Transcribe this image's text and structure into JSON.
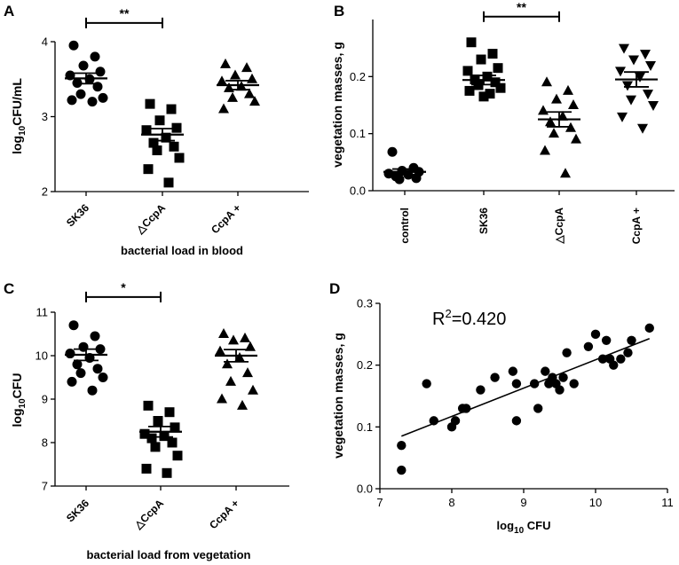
{
  "chart_data": [
    {
      "panel": "A",
      "type": "scatter",
      "ylabel_base": "log",
      "ylabel_sub": "10",
      "ylabel_rest": "CFU/mL",
      "xlabel": "bacterial load in blood",
      "categories": [
        "SK36",
        "△CcpA",
        "CcpA +"
      ],
      "ylim": [
        2,
        4
      ],
      "yticks": [
        "2",
        "3",
        "4"
      ],
      "marker": [
        "circle",
        "square",
        "triangle-up"
      ],
      "groups": [
        {
          "name": "SK36",
          "values": [
            3.95,
            3.8,
            3.68,
            3.6,
            3.55,
            3.5,
            3.45,
            3.4,
            3.3,
            3.25,
            3.22,
            3.2
          ],
          "mean": 3.51,
          "sem": 0.07
        },
        {
          "name": "△CcpA",
          "values": [
            3.17,
            3.1,
            2.95,
            2.85,
            2.82,
            2.72,
            2.65,
            2.6,
            2.55,
            2.45,
            2.3,
            2.12
          ],
          "mean": 2.76,
          "sem": 0.08
        },
        {
          "name": "CcpA +",
          "values": [
            3.7,
            3.65,
            3.55,
            3.5,
            3.47,
            3.4,
            3.38,
            3.3,
            3.25,
            3.2,
            3.1
          ],
          "mean": 3.42,
          "sem": 0.06
        }
      ],
      "significance": {
        "from": 0,
        "to": 1,
        "y": 4.25,
        "label": "**"
      }
    },
    {
      "panel": "B",
      "type": "scatter",
      "ylabel": "vegetation masses, g",
      "categories": [
        "control",
        "SK36",
        "△CcpA",
        "CcpA +"
      ],
      "ylim": [
        0,
        0.3
      ],
      "yticks": [
        "0.0",
        "0.1",
        "0.2"
      ],
      "marker": [
        "circle",
        "square",
        "triangle-up",
        "triangle-down"
      ],
      "groups": [
        {
          "name": "control",
          "values": [
            0.068,
            0.04,
            0.035,
            0.033,
            0.03,
            0.028,
            0.025,
            0.022,
            0.02
          ],
          "mean": 0.033,
          "sem": 0.005
        },
        {
          "name": "SK36",
          "values": [
            0.26,
            0.24,
            0.23,
            0.215,
            0.21,
            0.2,
            0.195,
            0.19,
            0.185,
            0.18,
            0.175,
            0.17,
            0.165
          ],
          "mean": 0.194,
          "sem": 0.008
        },
        {
          "name": "△CcpA",
          "values": [
            0.19,
            0.175,
            0.16,
            0.15,
            0.14,
            0.13,
            0.12,
            0.11,
            0.1,
            0.09,
            0.07,
            0.03
          ],
          "mean": 0.125,
          "sem": 0.013
        },
        {
          "name": "CcpA +",
          "values": [
            0.25,
            0.24,
            0.23,
            0.22,
            0.21,
            0.2,
            0.185,
            0.17,
            0.16,
            0.15,
            0.13,
            0.11
          ],
          "mean": 0.195,
          "sem": 0.013
        }
      ],
      "significance": {
        "from": 1,
        "to": 2,
        "y": 0.305,
        "label": "**"
      }
    },
    {
      "panel": "C",
      "type": "scatter",
      "ylabel_base": "log",
      "ylabel_sub": "10",
      "ylabel_rest": "CFU",
      "xlabel": "bacterial load from vegetation",
      "categories": [
        "SK36",
        "△CcpA",
        "CcpA +"
      ],
      "ylim": [
        7,
        11
      ],
      "yticks": [
        "7",
        "8",
        "9",
        "10",
        "11"
      ],
      "marker": [
        "circle",
        "square",
        "triangle-up"
      ],
      "groups": [
        {
          "name": "SK36",
          "values": [
            10.7,
            10.45,
            10.2,
            10.15,
            10.05,
            9.95,
            9.8,
            9.7,
            9.6,
            9.5,
            9.4,
            9.2
          ],
          "mean": 10.02,
          "sem": 0.13
        },
        {
          "name": "△CcpA",
          "values": [
            8.85,
            8.7,
            8.5,
            8.35,
            8.2,
            8.15,
            8.1,
            8.0,
            7.9,
            7.7,
            7.4,
            7.3
          ],
          "mean": 8.25,
          "sem": 0.12
        },
        {
          "name": "CcpA +",
          "values": [
            10.5,
            10.4,
            10.35,
            10.2,
            10.1,
            9.95,
            9.8,
            9.6,
            9.4,
            9.2,
            9.0,
            8.85
          ],
          "mean": 10.0,
          "sem": 0.14
        }
      ],
      "significance": {
        "from": 0,
        "to": 1,
        "y": 11.35,
        "label": "*"
      }
    },
    {
      "panel": "D",
      "type": "scatter",
      "ylabel": "vegetation masses, g",
      "xlabel_base": "log",
      "xlabel_sub": "10",
      "xlabel_rest": " CFU",
      "xlim": [
        7,
        11
      ],
      "ylim": [
        0,
        0.3
      ],
      "xticks": [
        "7",
        "8",
        "9",
        "10",
        "11"
      ],
      "yticks": [
        "0.0",
        "0.1",
        "0.2",
        "0.3"
      ],
      "annotation_base": "R",
      "annotation_sup": "2",
      "annotation_rest": "=0.420",
      "points": [
        [
          7.3,
          0.07
        ],
        [
          7.3,
          0.03
        ],
        [
          7.65,
          0.17
        ],
        [
          7.75,
          0.11
        ],
        [
          8.0,
          0.1
        ],
        [
          8.05,
          0.11
        ],
        [
          8.15,
          0.13
        ],
        [
          8.2,
          0.13
        ],
        [
          8.4,
          0.16
        ],
        [
          8.6,
          0.18
        ],
        [
          8.85,
          0.19
        ],
        [
          8.9,
          0.11
        ],
        [
          8.9,
          0.17
        ],
        [
          9.15,
          0.17
        ],
        [
          9.2,
          0.13
        ],
        [
          9.3,
          0.19
        ],
        [
          9.35,
          0.17
        ],
        [
          9.4,
          0.18
        ],
        [
          9.45,
          0.17
        ],
        [
          9.5,
          0.16
        ],
        [
          9.55,
          0.18
        ],
        [
          9.6,
          0.22
        ],
        [
          9.7,
          0.17
        ],
        [
          9.9,
          0.23
        ],
        [
          10.0,
          0.25
        ],
        [
          10.1,
          0.21
        ],
        [
          10.2,
          0.21
        ],
        [
          10.15,
          0.24
        ],
        [
          10.25,
          0.2
        ],
        [
          10.35,
          0.21
        ],
        [
          10.45,
          0.22
        ],
        [
          10.5,
          0.24
        ],
        [
          10.75,
          0.26
        ]
      ],
      "fit": {
        "x": [
          7.3,
          10.75
        ],
        "y": [
          0.085,
          0.243
        ]
      }
    }
  ]
}
